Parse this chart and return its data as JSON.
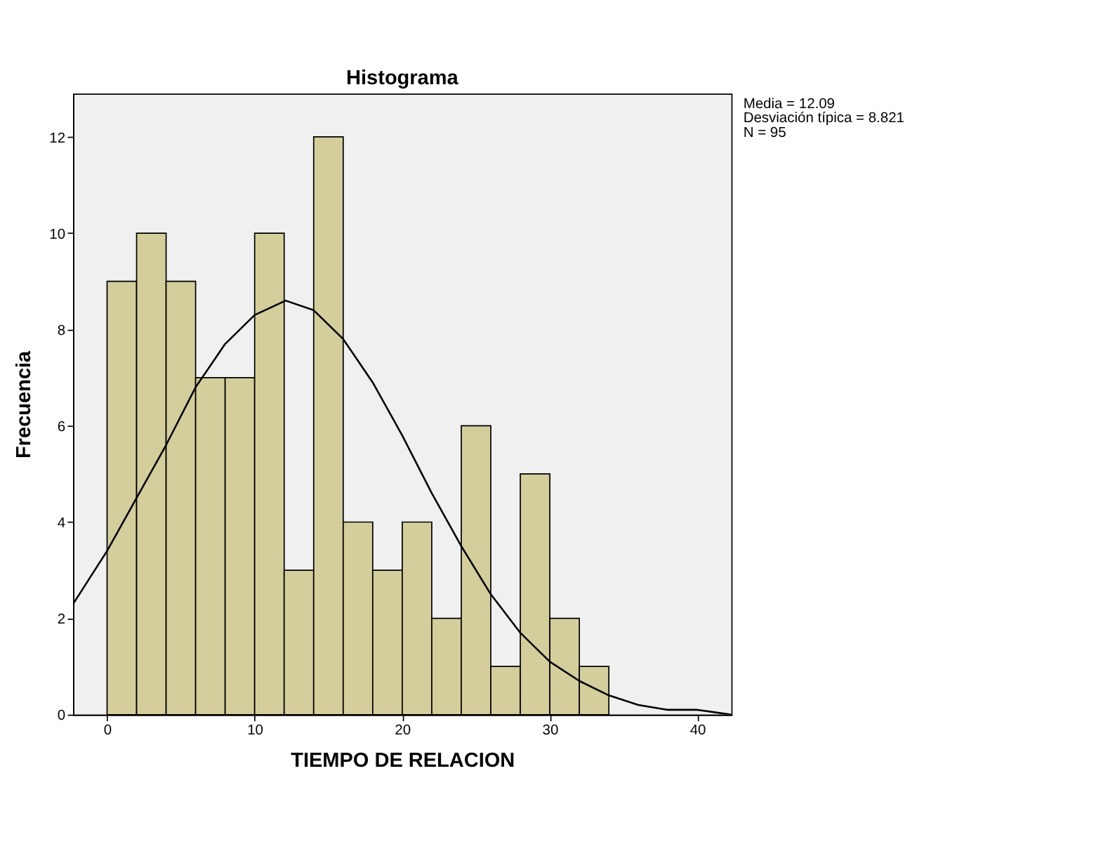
{
  "chart_data": {
    "type": "histogram",
    "title": "Histograma",
    "xlabel": "TIEMPO DE RELACION",
    "ylabel": "Frecuencia",
    "xlim": [
      -2.3,
      42.3
    ],
    "xticks": [
      0,
      10,
      20,
      30,
      40
    ],
    "ylim": [
      0,
      12.9
    ],
    "yticks": [
      0,
      2,
      4,
      6,
      8,
      10,
      12
    ],
    "grid": false,
    "annotations": [
      "Media = 12.09",
      "Desviación típica = 8.821",
      "N = 95"
    ],
    "series": [
      {
        "color": "#d3ce9c",
        "bins": [
          0,
          2,
          4,
          6,
          8,
          10,
          12,
          14,
          16,
          18,
          20,
          22,
          24,
          26,
          28,
          30,
          32,
          34
        ],
        "values": [
          9,
          10,
          9,
          7,
          7,
          10,
          3,
          12,
          4,
          3,
          4,
          2,
          6,
          1,
          5,
          2,
          1
        ]
      },
      {
        "type": "line",
        "color": "#000000",
        "x": [
          -2.3,
          0,
          2,
          4,
          6,
          8,
          10,
          12.1,
          14,
          16,
          18,
          20,
          22,
          24,
          26,
          28,
          30,
          32,
          34,
          36,
          38,
          40,
          42.3
        ],
        "values": [
          2.3,
          3.4,
          4.5,
          5.6,
          6.8,
          7.7,
          8.3,
          8.6,
          8.4,
          7.8,
          6.9,
          5.8,
          4.6,
          3.5,
          2.5,
          1.7,
          1.1,
          0.7,
          0.4,
          0.2,
          0.1,
          0.1,
          0.0
        ]
      }
    ]
  }
}
